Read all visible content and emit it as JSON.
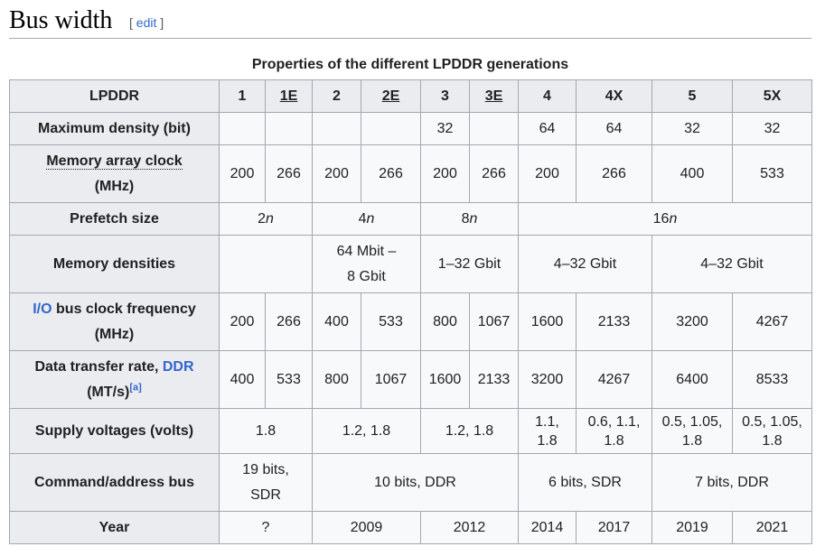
{
  "heading": {
    "title": "Bus width",
    "edit_open": "[ ",
    "edit_label": "edit",
    "edit_close": " ]"
  },
  "table": {
    "caption": "Properties of the different LPDDR generations",
    "header": {
      "label": "LPDDR",
      "gens": [
        "1",
        "1E",
        "2",
        "2E",
        "3",
        "3E",
        "4",
        "4X",
        "5",
        "5X"
      ]
    },
    "max_density": {
      "label": "Maximum density (bit)",
      "values": [
        "",
        "",
        "",
        "",
        "32",
        "",
        "64",
        "64",
        "32",
        "32"
      ]
    },
    "array_clock": {
      "label_link": "Memory array clock",
      "label_unit": "(MHz)",
      "values": [
        "200",
        "266",
        "200",
        "266",
        "200",
        "266",
        "200",
        "266",
        "400",
        "533"
      ]
    },
    "prefetch": {
      "label": "Prefetch size",
      "v1_num": "2",
      "v2_num": "4",
      "v3_num": "8",
      "v4_num": "16",
      "var": "n"
    },
    "densities": {
      "label": "Memory densities",
      "v1": "",
      "v2_line1": "64 Mbit –",
      "v2_line2": "8 Gbit",
      "v3": "1–32 Gbit",
      "v4": "4–32 Gbit",
      "v5": "4–32 Gbit"
    },
    "io_clock": {
      "label_link": "I/O",
      "label_rest": " bus clock frequency",
      "label_unit": "(MHz)",
      "values": [
        "200",
        "266",
        "400",
        "533",
        "800",
        "1067",
        "1600",
        "2133",
        "3200",
        "4267"
      ]
    },
    "transfer": {
      "label_pre": "Data transfer rate, ",
      "label_link": "DDR",
      "label_unit": "(MT/s)",
      "footnote": "[a]",
      "values": [
        "400",
        "533",
        "800",
        "1067",
        "1600",
        "2133",
        "3200",
        "4267",
        "6400",
        "8533"
      ]
    },
    "voltages": {
      "label": "Supply voltages (volts)",
      "v1": "1.8",
      "v2": "1.2, 1.8",
      "v3": "1.2, 1.8",
      "v4_l1": "1.1,",
      "v4_l2": "1.8",
      "v5_l1": "0.6, 1.1,",
      "v5_l2": "1.8",
      "v6_l1": "0.5, 1.05,",
      "v6_l2": "1.8",
      "v7_l1": "0.5, 1.05,",
      "v7_l2": "1.8"
    },
    "cmd_bus": {
      "label": "Command/address bus",
      "v1_l1": "19 bits,",
      "v1_l2": "SDR",
      "v2": "10 bits, DDR",
      "v3": "6 bits, SDR",
      "v4": "7 bits, DDR"
    },
    "year": {
      "label": "Year",
      "values": [
        "?",
        "2009",
        "2012",
        "2014",
        "2017",
        "2019",
        "2021"
      ]
    }
  }
}
